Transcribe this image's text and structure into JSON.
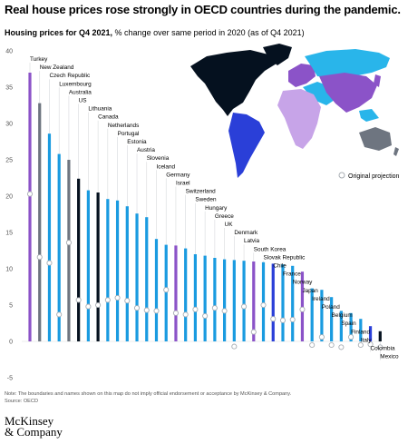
{
  "header": {
    "title": "Real house prices rose strongly in OECD countries during the pandemic.",
    "subtitle_bold": "Housing prices for Q4 2021,",
    "subtitle_rest": " % change over same period in 2020 (as of Q4 2021)"
  },
  "legend": {
    "projection_label": "Original projection"
  },
  "footer": {
    "note": "Note: The boundaries and names shown on this map do not imply official endorsement or acceptance by McKinsey & Company.",
    "source": "Source: OECD",
    "logo_line1": "McKinsey",
    "logo_line2": "& Company"
  },
  "colors": {
    "bar_default": "#1a9be0",
    "north_america": "#05111f",
    "south_america": "#2a3fd8",
    "europe": "#8b53c8",
    "africa": "#c7a4e8",
    "asia": "#8b53c8",
    "oceania": "#6e7580",
    "projection_marker": "#a8adb3",
    "gridline": "#d7d9dc",
    "axis_text": "#555555",
    "map_light_blue": "#29b5ea"
  },
  "chart_data": {
    "type": "bar",
    "title": "Real house prices rose strongly in OECD countries during the pandemic.",
    "ylabel": "",
    "ylim": [
      -5,
      40
    ],
    "yticks": [
      -5,
      0,
      5,
      10,
      15,
      20,
      25,
      30,
      35,
      40
    ],
    "grid": false,
    "legend": "right",
    "categories": [
      "Turkey",
      "New Zealand",
      "Czech Republic",
      "Luxembourg",
      "Australia",
      "US",
      "Lithuania",
      "Canada",
      "Netherlands",
      "Portugal",
      "Estonia",
      "Austria",
      "Slovenia",
      "Iceland",
      "Germany",
      "Israel",
      "Switzerland",
      "Sweden",
      "Hungary",
      "Greece",
      "UK",
      "Denmark",
      "Latvia",
      "South Korea",
      "Slovak Republic",
      "Chile",
      "France",
      "Norway",
      "Japan",
      "Ireland",
      "Poland",
      "Belgium",
      "Spain",
      "Finland",
      "Italy",
      "Colombia",
      "Mexico"
    ],
    "values": [
      37.0,
      32.8,
      28.6,
      25.8,
      25.0,
      22.4,
      20.8,
      20.5,
      19.6,
      19.4,
      18.6,
      17.6,
      17.1,
      14.1,
      13.3,
      13.2,
      12.8,
      12.0,
      11.8,
      11.5,
      11.3,
      11.2,
      11.1,
      11.0,
      10.9,
      10.7,
      10.6,
      10.4,
      9.6,
      7.3,
      7.1,
      6.1,
      4.2,
      3.9,
      3.1,
      2.1,
      1.4
    ],
    "projections": [
      20.3,
      11.6,
      10.8,
      3.7,
      13.6,
      5.7,
      4.8,
      5.0,
      5.7,
      6.0,
      5.6,
      4.6,
      4.3,
      4.2,
      7.1,
      3.9,
      3.7,
      4.4,
      3.5,
      4.6,
      4.2,
      -0.7,
      4.8,
      1.3,
      5.0,
      3.1,
      2.9,
      3.0,
      4.4,
      -0.5,
      0.6,
      -0.5,
      -0.8,
      0.6,
      -0.5,
      -0.4,
      -0.8
    ],
    "bar_regions": [
      "europe",
      "oceania",
      "bar_default",
      "bar_default",
      "oceania",
      "north_america",
      "bar_default",
      "north_america",
      "bar_default",
      "bar_default",
      "bar_default",
      "bar_default",
      "bar_default",
      "bar_default",
      "bar_default",
      "europe",
      "bar_default",
      "bar_default",
      "bar_default",
      "bar_default",
      "bar_default",
      "bar_default",
      "bar_default",
      "europe",
      "bar_default",
      "south_america",
      "bar_default",
      "bar_default",
      "europe",
      "bar_default",
      "bar_default",
      "bar_default",
      "bar_default",
      "bar_default",
      "bar_default",
      "south_america",
      "north_america"
    ]
  }
}
